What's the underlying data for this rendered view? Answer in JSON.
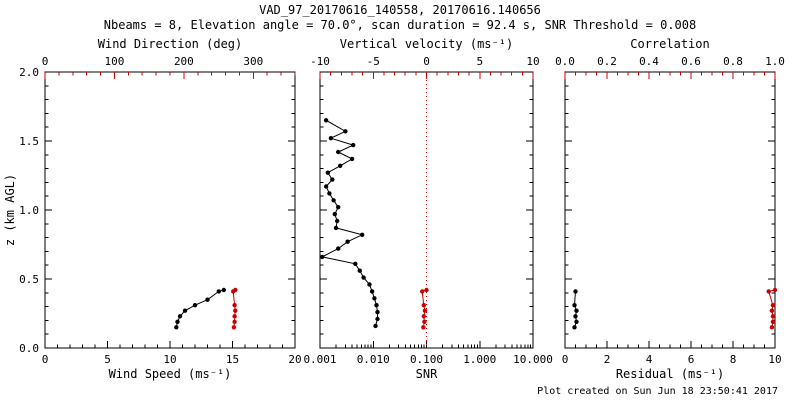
{
  "header": {
    "title": "VAD_97_20170616_140558, 20170616.140656",
    "subtitle": "Nbeams = 8, Elevation angle = 70.0°, scan duration = 92.4 s, SNR Threshold = 0.008"
  },
  "footer": {
    "created": "Plot created on Sun Jun 18 23:50:41 2017"
  },
  "colors": {
    "axis_black": "#000000",
    "axis_red": "#cc0000"
  },
  "chart_data": [
    {
      "name": "wind",
      "type": "scatter",
      "x_bottom": {
        "label": "Wind Speed (ms⁻¹)",
        "scale": "linear",
        "range": [
          0,
          20
        ],
        "tick_values": [
          0,
          5,
          10,
          15,
          20
        ],
        "tick_labels": [
          "0",
          "5",
          "10",
          "15",
          "20"
        ],
        "minor_step": 1,
        "color": "#000000"
      },
      "x_top": {
        "label": "Wind Direction (deg)",
        "scale": "linear",
        "range": [
          0,
          360
        ],
        "tick_values": [
          0,
          100,
          200,
          300
        ],
        "tick_labels": [
          "0",
          "100",
          "200",
          "300"
        ],
        "minor_step": 20,
        "color": "#cc0000"
      },
      "y": {
        "label": "z (km AGL)",
        "range": [
          0,
          2
        ],
        "tick_values": [
          0,
          0.5,
          1,
          1.5,
          2
        ],
        "tick_labels": [
          "0.0",
          "0.5",
          "1.0",
          "1.5",
          "2.0"
        ],
        "minor_step": 0.1,
        "show_labels": true
      },
      "series": [
        {
          "name": "wind-speed",
          "axis": "bottom",
          "color": "#000000",
          "points": [
            [
              10.5,
              0.15
            ],
            [
              10.6,
              0.19
            ],
            [
              10.8,
              0.23
            ],
            [
              11.2,
              0.27
            ],
            [
              12.0,
              0.31
            ],
            [
              13.0,
              0.35
            ],
            [
              13.9,
              0.41
            ],
            [
              14.3,
              0.42
            ]
          ]
        },
        {
          "name": "wind-direction",
          "axis": "top",
          "color": "#cc0000",
          "points": [
            [
              272,
              0.15
            ],
            [
              273,
              0.19
            ],
            [
              273,
              0.23
            ],
            [
              274,
              0.27
            ],
            [
              273,
              0.31
            ],
            [
              271,
              0.41
            ],
            [
              274,
              0.42
            ]
          ]
        }
      ]
    },
    {
      "name": "snr",
      "type": "scatter",
      "x_bottom": {
        "label": "SNR",
        "scale": "log",
        "range": [
          0.001,
          10
        ],
        "tick_values": [
          0.001,
          0.01,
          0.1,
          1,
          10
        ],
        "tick_labels": [
          "0.001",
          "0.010",
          "0.100",
          "1.000",
          "10.000"
        ],
        "color": "#000000"
      },
      "x_top": {
        "label": "Vertical velocity (ms⁻¹)",
        "scale": "linear",
        "range": [
          -10,
          10
        ],
        "tick_values": [
          -10,
          -5,
          0,
          5,
          10
        ],
        "tick_labels": [
          "-10",
          "-5",
          "0",
          "5",
          "10"
        ],
        "minor_step": 1,
        "color": "#cc0000"
      },
      "y": {
        "label": "",
        "range": [
          0,
          2
        ],
        "tick_values": [
          0,
          0.5,
          1,
          1.5,
          2
        ],
        "tick_labels": [
          "0.0",
          "0.5",
          "1.0",
          "1.5",
          "2.0"
        ],
        "minor_step": 0.1,
        "show_labels": false
      },
      "ref_line_top": 0,
      "series": [
        {
          "name": "snr-profile",
          "axis": "bottom",
          "color": "#000000",
          "points": [
            [
              0.0013,
              1.65
            ],
            [
              0.003,
              1.57
            ],
            [
              0.0016,
              1.52
            ],
            [
              0.0042,
              1.47
            ],
            [
              0.0022,
              1.42
            ],
            [
              0.004,
              1.37
            ],
            [
              0.0024,
              1.32
            ],
            [
              0.0014,
              1.27
            ],
            [
              0.0017,
              1.22
            ],
            [
              0.0013,
              1.17
            ],
            [
              0.0015,
              1.12
            ],
            [
              0.0018,
              1.07
            ],
            [
              0.0022,
              1.02
            ],
            [
              0.0019,
              0.97
            ],
            [
              0.0021,
              0.92
            ],
            [
              0.002,
              0.87
            ],
            [
              0.0062,
              0.82
            ],
            [
              0.0033,
              0.77
            ],
            [
              0.0022,
              0.72
            ],
            [
              0.0011,
              0.66
            ],
            [
              0.0046,
              0.61
            ],
            [
              0.0056,
              0.56
            ],
            [
              0.0066,
              0.51
            ],
            [
              0.0085,
              0.46
            ],
            [
              0.0095,
              0.41
            ],
            [
              0.0105,
              0.36
            ],
            [
              0.0115,
              0.31
            ],
            [
              0.012,
              0.26
            ],
            [
              0.012,
              0.21
            ],
            [
              0.011,
              0.16
            ]
          ]
        },
        {
          "name": "vertical-velocity",
          "axis": "top",
          "color": "#cc0000",
          "points": [
            [
              -0.3,
              0.15
            ],
            [
              -0.2,
              0.19
            ],
            [
              -0.25,
              0.23
            ],
            [
              -0.15,
              0.27
            ],
            [
              -0.25,
              0.31
            ],
            [
              -0.4,
              0.41
            ],
            [
              0.0,
              0.42
            ]
          ]
        }
      ]
    },
    {
      "name": "residual",
      "type": "scatter",
      "x_bottom": {
        "label": "Residual (ms⁻¹)",
        "scale": "linear",
        "range": [
          0,
          10
        ],
        "tick_values": [
          0,
          2,
          4,
          6,
          8,
          10
        ],
        "tick_labels": [
          "0",
          "2",
          "4",
          "6",
          "8",
          "10"
        ],
        "minor_step": 0.5,
        "color": "#000000"
      },
      "x_top": {
        "label": "Correlation",
        "scale": "linear",
        "range": [
          0,
          1
        ],
        "tick_values": [
          0,
          0.2,
          0.4,
          0.6,
          0.8,
          1.0
        ],
        "tick_labels": [
          "0.0",
          "0.2",
          "0.4",
          "0.6",
          "0.8",
          "1.0"
        ],
        "minor_step": 0.05,
        "color": "#cc0000"
      },
      "y": {
        "label": "",
        "range": [
          0,
          2
        ],
        "tick_values": [
          0,
          0.5,
          1,
          1.5,
          2
        ],
        "tick_labels": [
          "0.0",
          "0.5",
          "1.0",
          "1.5",
          "2.0"
        ],
        "minor_step": 0.1,
        "show_labels": false
      },
      "series": [
        {
          "name": "residual",
          "axis": "bottom",
          "color": "#000000",
          "points": [
            [
              0.45,
              0.15
            ],
            [
              0.55,
              0.19
            ],
            [
              0.5,
              0.23
            ],
            [
              0.55,
              0.27
            ],
            [
              0.45,
              0.31
            ],
            [
              0.5,
              0.41
            ]
          ]
        },
        {
          "name": "correlation",
          "axis": "top",
          "color": "#cc0000",
          "points": [
            [
              0.985,
              0.15
            ],
            [
              0.99,
              0.19
            ],
            [
              0.99,
              0.23
            ],
            [
              0.985,
              0.27
            ],
            [
              0.99,
              0.31
            ],
            [
              0.97,
              0.41
            ],
            [
              1.0,
              0.42
            ]
          ]
        }
      ]
    }
  ]
}
